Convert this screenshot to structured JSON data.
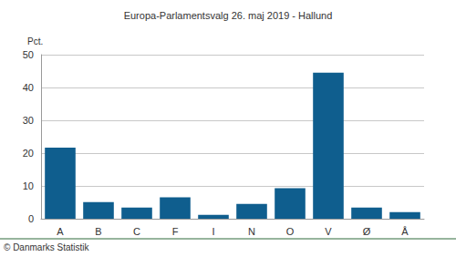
{
  "chart_data": {
    "type": "bar",
    "title": "Europa-Parlamentsvalg 26. maj 2019 - Hallund",
    "ylabel": "Pct.",
    "annotations": [
      "© Danmarks Statistik"
    ],
    "categories": [
      "A",
      "B",
      "C",
      "F",
      "I",
      "N",
      "O",
      "V",
      "Ø",
      "Å"
    ],
    "values": [
      21.7,
      5.1,
      3.4,
      6.5,
      1.2,
      4.5,
      9.3,
      44.5,
      3.4,
      2.0
    ],
    "color": "#0f5e8e",
    "ylim": [
      0,
      50
    ],
    "yticks": [
      0,
      10,
      20,
      30,
      40,
      50
    ],
    "grid": true
  }
}
